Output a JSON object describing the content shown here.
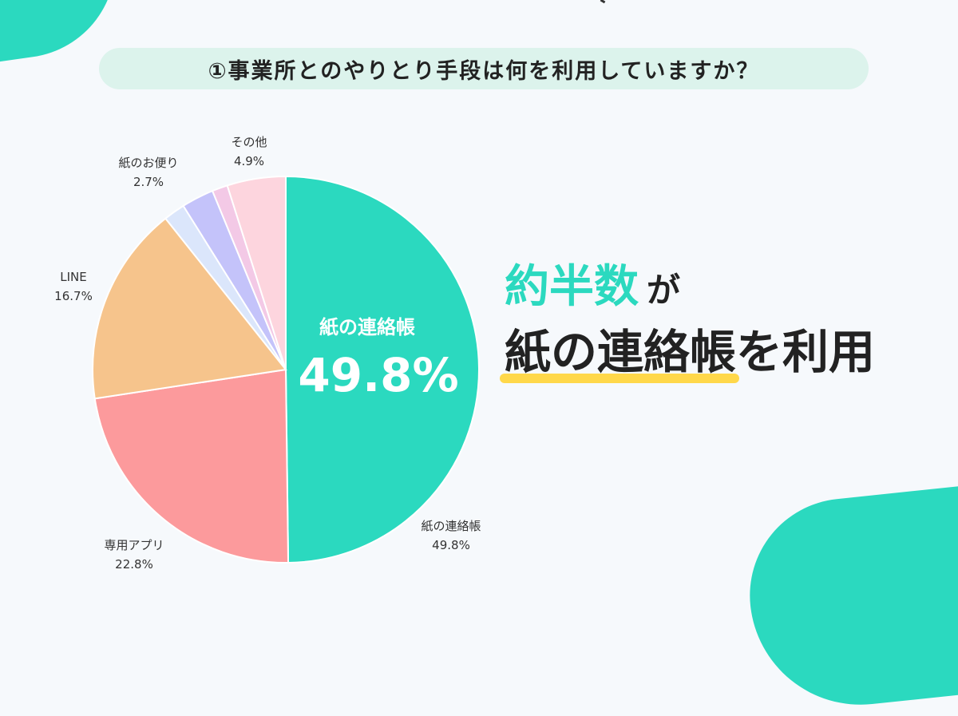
{
  "question": "①事業所とのやりとり手段は何を利用していますか？",
  "headline": {
    "accent": "約半数",
    "particle": "が",
    "emphasis": "紙の連絡帳",
    "tail": "を利用"
  },
  "colors": {
    "accent": "#2bd9bf",
    "underline": "#ffd84a",
    "background": "#f6f9fc"
  },
  "chart_data": {
    "type": "pie",
    "title": "",
    "start": "12 o'clock, clockwise",
    "slices": [
      {
        "label": "紙の連絡帳",
        "value": 49.8,
        "display": "49.8%",
        "color": "#2bd9bf"
      },
      {
        "label": "専用アプリ",
        "value": 22.8,
        "display": "22.8%",
        "color": "#fc9a9c"
      },
      {
        "label": "LINE",
        "value": 16.7,
        "display": "16.7%",
        "color": "#f6c48c"
      },
      {
        "label": "",
        "value": 1.8,
        "display": "",
        "color": "#dbe6fb"
      },
      {
        "label": "紙のお便り",
        "value": 2.7,
        "display": "2.7%",
        "color": "#c4c3fa"
      },
      {
        "label": "",
        "value": 1.3,
        "display": "",
        "color": "#f3c9e6"
      },
      {
        "label": "その他",
        "value": 4.9,
        "display": "4.9%",
        "color": "#fdd5de"
      }
    ],
    "callout": {
      "label": "紙の連絡帳",
      "value": "49.8%"
    }
  }
}
